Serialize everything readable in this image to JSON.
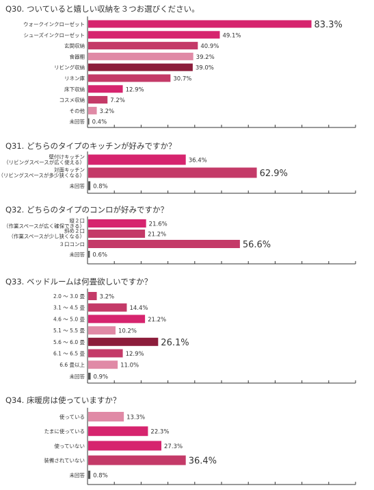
{
  "colors": {
    "pink": "#d6246e",
    "dark": "#8c1d3b",
    "light": "#e08aa6",
    "rose": "#c43a68",
    "gray": "#555555",
    "axis": "#333333"
  },
  "chart_data": [
    {
      "type": "bar",
      "orientation": "horizontal",
      "title": "Q30. ついていると嬉しい収納を３つお選びください。",
      "unit": "%",
      "xlim": [
        0,
        100
      ],
      "categories": [
        "ウォークインクローゼット",
        "シューズインクローゼット",
        "玄関収納",
        "食器棚",
        "リビング収納",
        "リネン庫",
        "床下収納",
        "コスメ収納",
        "その他",
        "未回答"
      ],
      "values": [
        83.3,
        49.1,
        40.9,
        39.2,
        39.0,
        30.7,
        12.9,
        7.2,
        3.2,
        0.4
      ],
      "labels": [
        "83.3%",
        "49.1%",
        "40.9%",
        "39.2%",
        "39.0%",
        "30.7%",
        "12.9%",
        "7.2%",
        "3.2%",
        "0.4%"
      ],
      "bar_colors": [
        "pink",
        "pink",
        "rose",
        "light",
        "dark",
        "rose",
        "pink",
        "rose",
        "light",
        "gray"
      ]
    },
    {
      "type": "bar",
      "orientation": "horizontal",
      "title": "Q31. どちらのタイプのキッチンが好みですか？",
      "unit": "%",
      "xlim": [
        0,
        100
      ],
      "categories": [
        [
          "壁付けキッチン",
          "（リビングスペースが広く使える）"
        ],
        [
          "対面キッチン",
          "（リビングスペースが多少狭くなる）"
        ],
        [
          "未回答"
        ]
      ],
      "values": [
        36.4,
        62.9,
        0.8
      ],
      "labels": [
        "36.4%",
        "62.9%",
        "0.8%"
      ],
      "bar_colors": [
        "pink",
        "rose",
        "gray"
      ]
    },
    {
      "type": "bar",
      "orientation": "horizontal",
      "title": "Q32. どちらのタイプのコンロが好みですか？",
      "unit": "%",
      "xlim": [
        0,
        100
      ],
      "categories": [
        [
          "縦２口",
          "（作業スペースが広く確保できる）"
        ],
        [
          "斜め２口",
          "（作業スペースが少し狭くなる）"
        ],
        [
          "３口コンロ"
        ],
        [
          "未回答"
        ]
      ],
      "values": [
        21.6,
        21.2,
        56.6,
        0.6
      ],
      "labels": [
        "21.6%",
        "21.2%",
        "56.6%",
        "0.6%"
      ],
      "bar_colors": [
        "pink",
        "rose",
        "rose",
        "gray"
      ]
    },
    {
      "type": "bar",
      "orientation": "horizontal",
      "title": "Q33. ベッドルームは何畳欲しいですか？",
      "unit": "%",
      "xlim": [
        0,
        100
      ],
      "categories": [
        "2.0 ～ 3.0 畳",
        "3.1 ～ 4.5 畳",
        "4.6 ～ 5.0 畳",
        "5.1 ～ 5.5 畳",
        "5.6 ～ 6.0 畳",
        "6.1 ～ 6.5 畳",
        "6.6 畳以上",
        "未回答"
      ],
      "values": [
        3.2,
        14.4,
        21.2,
        10.2,
        26.1,
        12.9,
        11.0,
        0.9
      ],
      "labels": [
        "3.2%",
        "14.4%",
        "21.2%",
        "10.2%",
        "26.1%",
        "12.9%",
        "11.0%",
        "0.9%"
      ],
      "bar_colors": [
        "rose",
        "rose",
        "pink",
        "light",
        "dark",
        "rose",
        "light",
        "gray"
      ]
    },
    {
      "type": "bar",
      "orientation": "horizontal",
      "title": "Q34. 床暖房は使っていますか？",
      "unit": "%",
      "xlim": [
        0,
        100
      ],
      "categories": [
        "使っている",
        "たまに使っている",
        "使っていない",
        "装備されていない",
        "未回答"
      ],
      "values": [
        13.3,
        22.3,
        27.3,
        36.4,
        0.8
      ],
      "labels": [
        "13.3%",
        "22.3%",
        "27.3%",
        "36.4%",
        "0.8%"
      ],
      "bar_colors": [
        "light",
        "pink",
        "pink",
        "rose",
        "gray"
      ]
    }
  ]
}
